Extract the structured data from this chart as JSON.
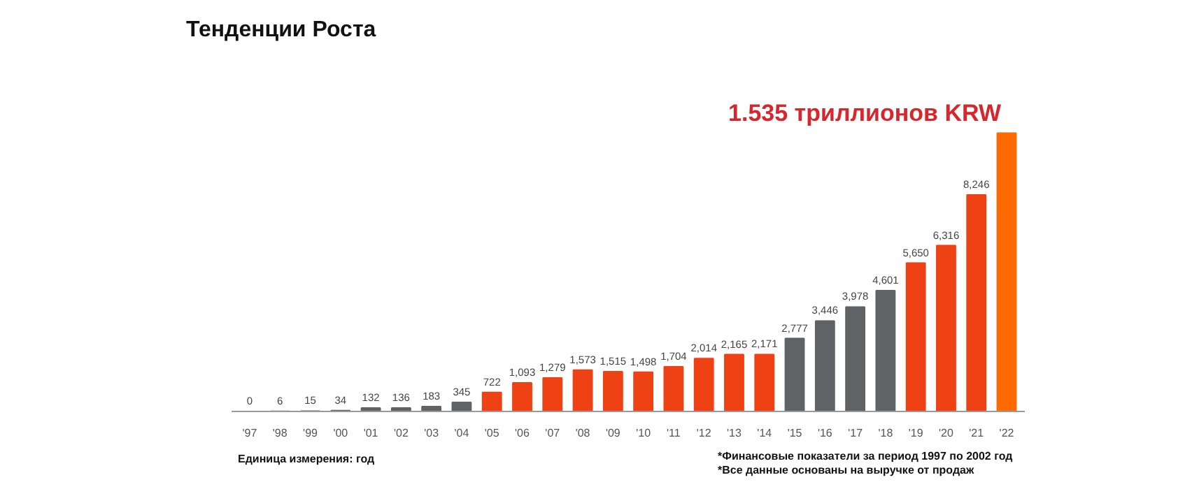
{
  "chart_data": {
    "type": "bar",
    "title": "Тенденции Роста",
    "categories": [
      "'97",
      "'98",
      "'99",
      "'00",
      "'01",
      "'02",
      "'03",
      "'04",
      "'05",
      "'06",
      "'07",
      "'08",
      "'09",
      "'10",
      "'11",
      "'12",
      "'13",
      "'14",
      "'15",
      "'16",
      "'17",
      "'18",
      "'19",
      "'20",
      "'21",
      "'22"
    ],
    "values": [
      0,
      6,
      15,
      34,
      132,
      136,
      183,
      345,
      722,
      1093,
      1279,
      1573,
      1515,
      1498,
      1704,
      2014,
      2165,
      2171,
      2777,
      3446,
      3978,
      4601,
      5650,
      6316,
      8246,
      10600
    ],
    "colors": [
      "#5f6366",
      "#5f6366",
      "#5f6366",
      "#5f6366",
      "#5f6366",
      "#5f6366",
      "#5f6366",
      "#5f6366",
      "#ee4215",
      "#ee4215",
      "#ee4215",
      "#ee4215",
      "#ee4215",
      "#ee4215",
      "#ee4215",
      "#ee4215",
      "#ee4215",
      "#ee4215",
      "#5f6366",
      "#5f6366",
      "#5f6366",
      "#5f6366",
      "#ee4215",
      "#ee4215",
      "#ee4215",
      "#ff6a00"
    ],
    "value_labels": [
      "0",
      "6",
      "15",
      "34",
      "132",
      "136",
      "183",
      "345",
      "722",
      "1,093",
      "1,279",
      "1,573",
      "1,515",
      "1,498",
      "1,704",
      "2,014",
      "2,165",
      "2,171",
      "2,777",
      "3,446",
      "3,978",
      "4,601",
      "5,650",
      "6,316",
      "8,246",
      null
    ],
    "annotations": [
      "1.535 триллионов KRW",
      "Единица измерения: год",
      "*Финансовые показатели за период 1997 по 2002 год",
      "*Все данные основаны на выручке от продаж"
    ],
    "grid": false,
    "legend": false
  }
}
